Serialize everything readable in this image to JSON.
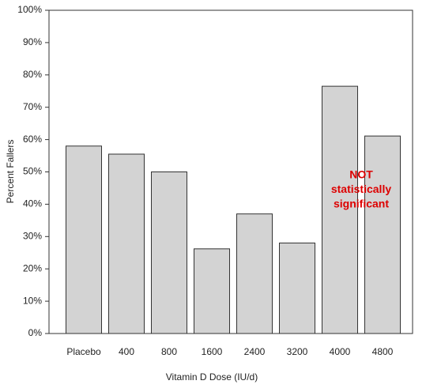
{
  "chart_data": {
    "type": "bar",
    "x_label": "Vitamin D Dose (IU/d)",
    "y_label": "Percent Fallers",
    "categories": [
      "Placebo",
      "400",
      "800",
      "1600",
      "2400",
      "3200",
      "4000",
      "4800"
    ],
    "values": [
      58,
      55.5,
      50,
      26.2,
      37,
      28,
      76.5,
      61.1
    ],
    "color": "#d3d3d3",
    "ylim": [
      0,
      100
    ],
    "yticks": [
      {
        "value": 0,
        "label": "0%"
      },
      {
        "value": 10,
        "label": "10%"
      },
      {
        "value": 20,
        "label": "20%"
      },
      {
        "value": 30,
        "label": "30%"
      },
      {
        "value": 40,
        "label": "40%"
      },
      {
        "value": 50,
        "label": "50%"
      },
      {
        "value": 60,
        "label": "60%"
      },
      {
        "value": 70,
        "label": "70%"
      },
      {
        "value": 80,
        "label": "80%"
      },
      {
        "value": 90,
        "label": "90%"
      },
      {
        "value": 100,
        "label": "100%"
      }
    ],
    "annotation": [
      "NOT",
      "statistically",
      "significant"
    ],
    "annotation_color": "#dd0000"
  }
}
